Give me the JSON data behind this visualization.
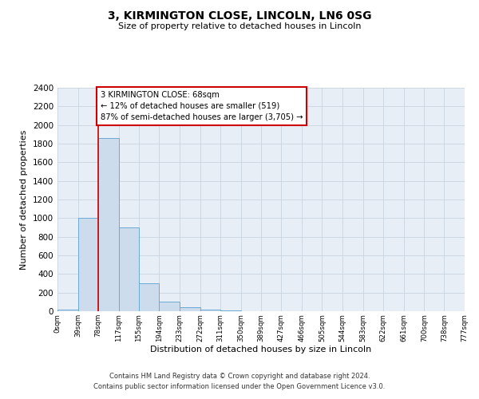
{
  "title": "3, KIRMINGTON CLOSE, LINCOLN, LN6 0SG",
  "subtitle": "Size of property relative to detached houses in Lincoln",
  "xlabel": "Distribution of detached houses by size in Lincoln",
  "ylabel": "Number of detached properties",
  "bin_edges": [
    0,
    39,
    78,
    117,
    155,
    194,
    233,
    272,
    311,
    350,
    389,
    427,
    466,
    505,
    544,
    583,
    622,
    661,
    700,
    738,
    777
  ],
  "bin_labels": [
    "0sqm",
    "39sqm",
    "78sqm",
    "117sqm",
    "155sqm",
    "194sqm",
    "233sqm",
    "272sqm",
    "311sqm",
    "350sqm",
    "389sqm",
    "427sqm",
    "466sqm",
    "505sqm",
    "544sqm",
    "583sqm",
    "622sqm",
    "661sqm",
    "700sqm",
    "738sqm",
    "777sqm"
  ],
  "bar_heights": [
    20,
    1000,
    1860,
    900,
    300,
    100,
    45,
    20,
    10,
    0,
    0,
    0,
    0,
    0,
    0,
    0,
    0,
    0,
    0,
    0
  ],
  "bar_color": "#cddcec",
  "bar_edge_color": "#6aaad4",
  "grid_color": "#c8d4e0",
  "background_color": "#e8eef5",
  "red_line_x": 78,
  "annotation_line1": "3 KIRMINGTON CLOSE: 68sqm",
  "annotation_line2": "← 12% of detached houses are smaller (519)",
  "annotation_line3": "87% of semi-detached houses are larger (3,705) →",
  "annotation_box_edge": "#cc0000",
  "ylim": [
    0,
    2400
  ],
  "yticks": [
    0,
    200,
    400,
    600,
    800,
    1000,
    1200,
    1400,
    1600,
    1800,
    2000,
    2200,
    2400
  ],
  "footer_line1": "Contains HM Land Registry data © Crown copyright and database right 2024.",
  "footer_line2": "Contains public sector information licensed under the Open Government Licence v3.0."
}
